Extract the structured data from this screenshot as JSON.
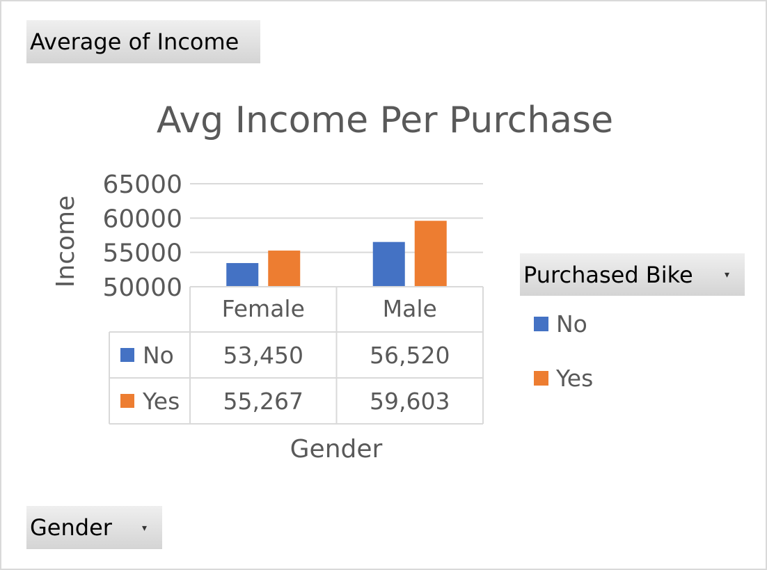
{
  "pivot_fields": {
    "value_field": "Average of Income",
    "legend_field": "Purchased Bike",
    "axis_field": "Gender"
  },
  "icons": {
    "dropdown": "dropdown-arrow-icon"
  },
  "colors": {
    "No": "#4472c4",
    "Yes": "#ed7d31",
    "gridline": "#d9d9d9",
    "text": "#595959",
    "field_button": "#dcdcdc"
  },
  "chart_data": {
    "type": "bar",
    "title": "Avg Income Per Purchase",
    "xlabel": "Gender",
    "ylabel": "Income",
    "categories": [
      "Female",
      "Male"
    ],
    "series": [
      {
        "name": "No",
        "values": [
          53450,
          56520
        ],
        "labels": [
          "53,450",
          "56,520"
        ]
      },
      {
        "name": "Yes",
        "values": [
          55267,
          59603
        ],
        "labels": [
          "55,267",
          "59,603"
        ]
      }
    ],
    "ylim": [
      50000,
      65000
    ],
    "yticks": [
      "50000",
      "55000",
      "60000",
      "65000"
    ],
    "grid": true,
    "legend": "right",
    "data_table": true
  }
}
